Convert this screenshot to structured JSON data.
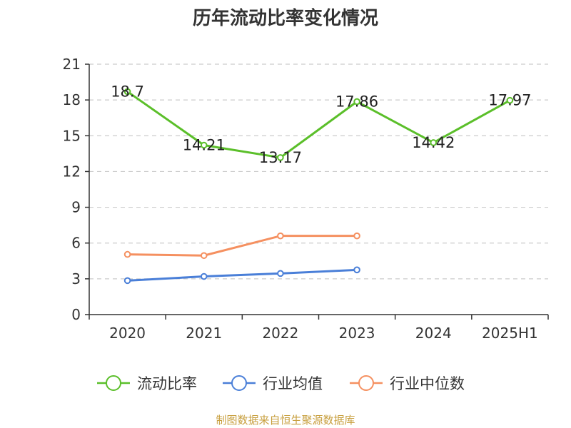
{
  "chart_data": {
    "type": "line",
    "title": "历年流动比率变化情况",
    "categories": [
      "2020",
      "2021",
      "2022",
      "2023",
      "2024",
      "2025H1"
    ],
    "yticks": [
      "0",
      "3",
      "6",
      "9",
      "12",
      "15",
      "18",
      "21"
    ],
    "ylim": [
      0,
      21
    ],
    "grid": true,
    "legend_position": "bottom",
    "series": [
      {
        "name": "流动比率",
        "color": "#5bbf2a",
        "values": [
          18.7,
          14.21,
          13.17,
          17.86,
          14.42,
          17.97
        ],
        "labels": [
          "18.7",
          "14.21",
          "13.17",
          "17.86",
          "14.42",
          "17.97"
        ]
      },
      {
        "name": "行业均值",
        "color": "#4a7fd8",
        "values": [
          2.85,
          3.2,
          3.45,
          3.75,
          null,
          null
        ]
      },
      {
        "name": "行业中位数",
        "color": "#f59060",
        "values": [
          5.05,
          4.95,
          6.6,
          6.6,
          null,
          null
        ]
      }
    ]
  },
  "source": "制图数据来自恒生聚源数据库"
}
